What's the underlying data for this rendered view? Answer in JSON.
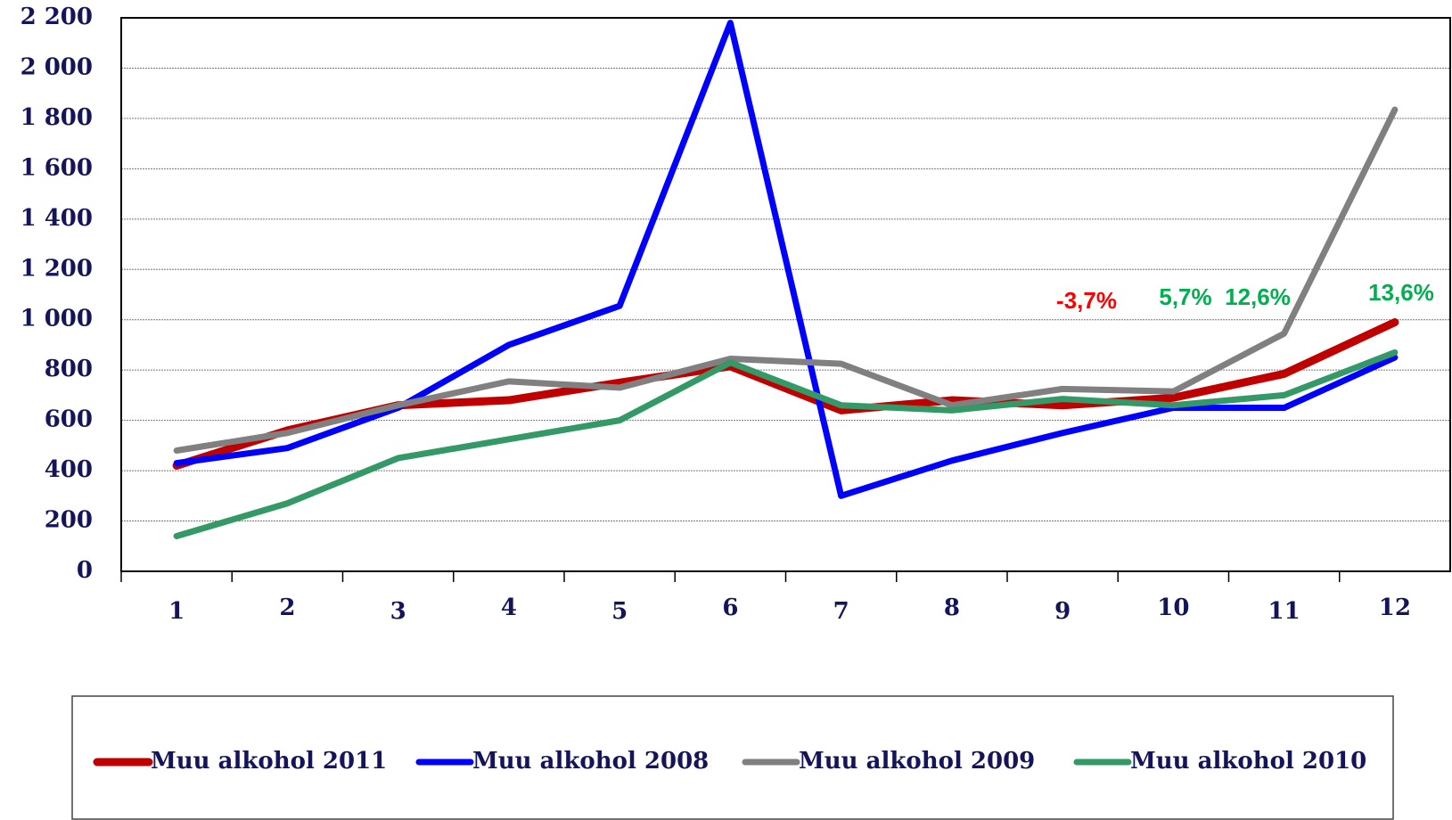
{
  "chart_data": {
    "type": "line",
    "categories": [
      "1",
      "2",
      "3",
      "4",
      "5",
      "6",
      "7",
      "8",
      "9",
      "10",
      "11",
      "12"
    ],
    "series": [
      {
        "name": "Muu alkohol 2011",
        "color": "#c00000",
        "values": [
          420,
          560,
          660,
          680,
          750,
          815,
          640,
          680,
          660,
          690,
          785,
          990
        ]
      },
      {
        "name": "Muu alkohol 2008",
        "color": "#0000ff",
        "values": [
          430,
          490,
          650,
          900,
          1055,
          2180,
          300,
          440,
          550,
          650,
          650,
          850
        ]
      },
      {
        "name": "Muu alkohol 2009",
        "color": "#808080",
        "values": [
          480,
          550,
          660,
          755,
          730,
          845,
          825,
          660,
          725,
          715,
          945,
          1835
        ]
      },
      {
        "name": "Muu alkohol 2010",
        "color": "#339966",
        "values": [
          140,
          270,
          450,
          525,
          600,
          830,
          660,
          640,
          685,
          660,
          700,
          870
        ]
      }
    ],
    "ylim": [
      0,
      2200
    ],
    "yticks": [
      0,
      200,
      400,
      600,
      800,
      {
        "value": 1000,
        "label": "1 000"
      },
      {
        "value": 1200,
        "label": "1 200"
      },
      {
        "value": 1400,
        "label": "1 400"
      },
      {
        "value": 1600,
        "label": "1 600"
      },
      {
        "value": 1800,
        "label": "1 800"
      },
      {
        "value": 2000,
        "label": "2 000"
      },
      {
        "value": 2200,
        "label": "2 200"
      }
    ],
    "grid": true,
    "annotations": [
      {
        "text": "-3,7%",
        "color": "#ff0000"
      },
      {
        "text": "5,7%",
        "color": "#00b050"
      },
      {
        "text": "12,6%",
        "color": "#00b050"
      },
      {
        "text": "13,6%",
        "color": "#00b050"
      }
    ]
  }
}
